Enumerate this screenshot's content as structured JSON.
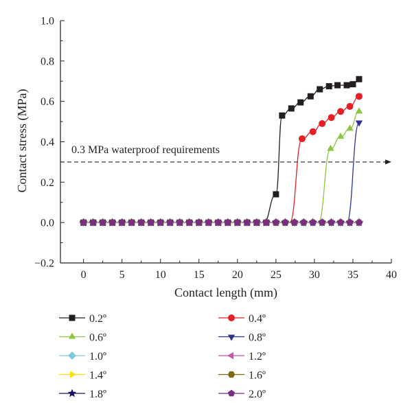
{
  "chart_data": {
    "type": "line",
    "xlabel": "Contact length (mm)",
    "ylabel": "Contact stress (MPa)",
    "xlim": [
      -3,
      40
    ],
    "ylim": [
      -0.2,
      1.0
    ],
    "x_ticks": [
      0,
      5,
      10,
      15,
      20,
      25,
      30,
      35,
      40
    ],
    "y_ticks": [
      -0.2,
      0.0,
      0.2,
      0.4,
      0.6,
      0.8,
      1.0
    ],
    "x_tick_labels": [
      "0",
      "5",
      "10",
      "15",
      "20",
      "25",
      "30",
      "35",
      "40"
    ],
    "y_tick_labels": [
      "−0.2",
      "0.0",
      "0.2",
      "0.4",
      "0.6",
      "0.8",
      "1.0"
    ],
    "grid": false,
    "legend_position": "bottom",
    "reference_line": {
      "y": 0.3,
      "x_range": [
        -3,
        40
      ],
      "label": "0.3 MPa waterproof requirements",
      "style": "dashed-arrow"
    },
    "baseline_x": [
      0,
      1.25,
      2.5,
      3.75,
      5,
      6.25,
      7.5,
      8.75,
      10,
      11.25,
      12.5,
      13.75,
      15,
      16.25,
      17.5,
      18.75,
      20,
      21.25,
      22.5,
      23.75
    ],
    "series": [
      {
        "name": "0.2º",
        "color": "#231f20",
        "marker": "square",
        "x": [
          25,
          25.8,
          27,
          28.2,
          29.5,
          30.7,
          31.9,
          33,
          34.2,
          35,
          35.8
        ],
        "y": [
          0.14,
          0.53,
          0.565,
          0.595,
          0.625,
          0.66,
          0.675,
          0.68,
          0.68,
          0.685,
          0.71
        ]
      },
      {
        "name": "0.4º",
        "color": "#e31e24",
        "marker": "circle",
        "x": [
          28.4,
          29.8,
          31,
          32.2,
          33.4,
          34.6,
          35.8
        ],
        "y": [
          0.415,
          0.45,
          0.49,
          0.52,
          0.55,
          0.575,
          0.625
        ]
      },
      {
        "name": "0.6º",
        "color": "#8dc63f",
        "marker": "triangle-up",
        "x": [
          32.1,
          33.4,
          34.6,
          35.8
        ],
        "y": [
          0.365,
          0.425,
          0.465,
          0.55
        ]
      },
      {
        "name": "0.8º",
        "color": "#2e3192",
        "marker": "triangle-down",
        "x": [
          35.8
        ],
        "y": [
          0.495
        ]
      },
      {
        "name": "1.0º",
        "color": "#80c8e0",
        "marker": "diamond",
        "x": [],
        "y": []
      },
      {
        "name": "1.2º",
        "color": "#c855a8",
        "marker": "triangle-left",
        "x": [],
        "y": []
      },
      {
        "name": "1.4º",
        "color": "#f7e400",
        "marker": "triangle-right",
        "x": [],
        "y": []
      },
      {
        "name": "1.6º",
        "color": "#7c6a14",
        "marker": "hexagon",
        "x": [],
        "y": []
      },
      {
        "name": "1.8º",
        "color": "#1b1464",
        "marker": "star",
        "x": [],
        "y": []
      },
      {
        "name": "2.0º",
        "color": "#7b2c83",
        "marker": "pentagon",
        "x": [],
        "y": []
      }
    ]
  }
}
